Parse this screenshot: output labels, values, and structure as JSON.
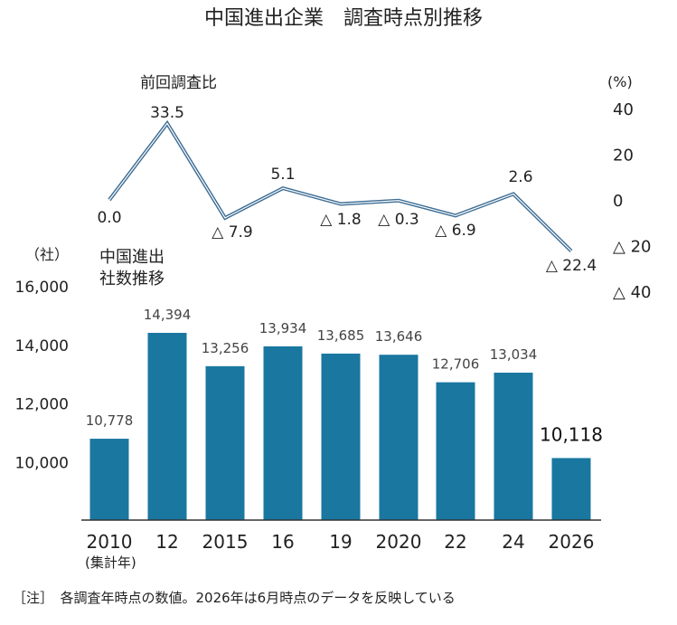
{
  "title": "中国進出企業　調査時点別推移",
  "note": "［注］　各調査年時点の数値。2026年は6月時点のデータを反映している",
  "chart_data": [
    {
      "type": "line",
      "label": "前回調査比",
      "unit": "(%)",
      "categories": [
        "2010",
        "12",
        "2015",
        "16",
        "19",
        "2020",
        "22",
        "24",
        "2026"
      ],
      "values": [
        0.0,
        33.5,
        -7.9,
        5.1,
        -1.8,
        -0.3,
        -6.9,
        2.6,
        -22.4
      ],
      "value_labels": [
        "0.0",
        "33.5",
        "△ 7.9",
        "5.1",
        "△ 1.8",
        "△ 0.3",
        "△ 6.9",
        "2.6",
        "△ 22.4"
      ],
      "ylim": [
        -40,
        40
      ],
      "yticks": [
        "40",
        "20",
        "0",
        "△ 20",
        "△ 40"
      ],
      "axis_position": "right",
      "color": "#3d6d94"
    },
    {
      "type": "bar",
      "label": "中国進出\n社数推移",
      "unit": "（社）",
      "categories": [
        "2010",
        "12",
        "2015",
        "16",
        "19",
        "2020",
        "22",
        "24",
        "2026"
      ],
      "category_sublabel": "(集計年)",
      "values": [
        10778,
        14394,
        13256,
        13934,
        13685,
        13646,
        12706,
        13034,
        10118
      ],
      "value_labels": [
        "10,778",
        "14,394",
        "13,256",
        "13,934",
        "13,685",
        "13,646",
        "12,706",
        "13,034",
        "10,118"
      ],
      "ylim": [
        8000,
        16000
      ],
      "yticks": [
        "10,000",
        "12,000",
        "14,000",
        "16,000"
      ],
      "axis_position": "left",
      "color": "#1a77a0",
      "highlight_index": 8
    }
  ]
}
